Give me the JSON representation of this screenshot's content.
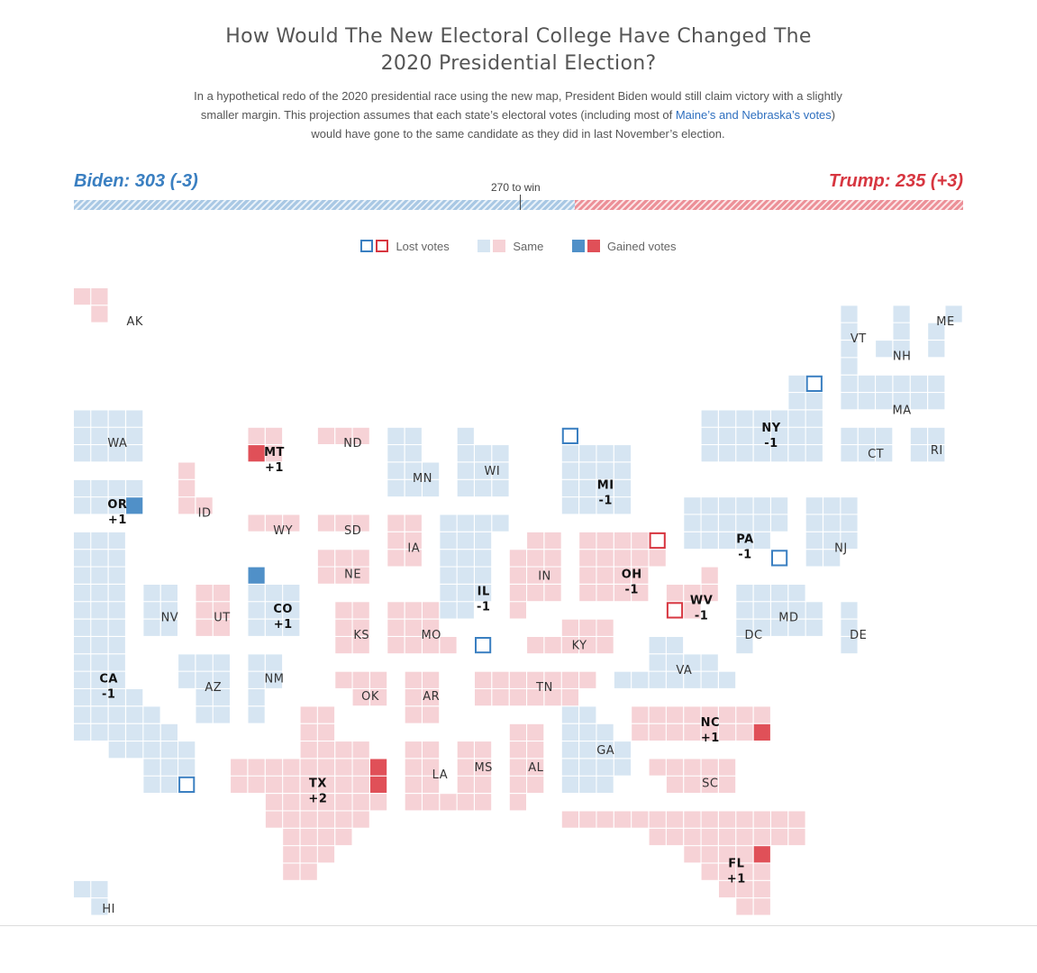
{
  "header": {
    "title_line1": "How Would The New Electoral College Have Changed The",
    "title_line2": "2020 Presidential Election?",
    "desc_before": "In a hypothetical redo of the 2020 presidential race using the new map, President Biden would still claim victory with a slightly smaller margin. This projection assumes that each state’s electoral votes (including most of ",
    "desc_link": "Maine’s and Nebraska’s votes",
    "desc_after": ") would have gone to the same candidate as they did in last November’s election."
  },
  "tally": {
    "biden_label": "Biden: 303 (-3)",
    "trump_label": "Trump: 235 (+3)",
    "biden_votes": 303,
    "trump_votes": 235,
    "threshold_label": "270 to win",
    "threshold": 270,
    "total": 538
  },
  "legend": {
    "lost": "Lost votes",
    "same": "Same",
    "gained": "Gained votes"
  },
  "colors": {
    "dem_same": "#d6e5f2",
    "rep_same": "#f6d2d6",
    "dem_gain": "#5090c8",
    "rep_gain": "#e05058",
    "dem_lost": "#3a7fc1",
    "rep_lost": "#d73640"
  },
  "chart_data": {
    "type": "tile-map",
    "states": [
      {
        "state": "AK",
        "party": "R",
        "votes": 3,
        "change": 0,
        "label": "AK"
      },
      {
        "state": "ME",
        "party": "D",
        "votes": 4,
        "change": 0,
        "label": "ME"
      },
      {
        "state": "VT",
        "party": "D",
        "votes": 3,
        "change": 0,
        "label": "VT"
      },
      {
        "state": "NH",
        "party": "D",
        "votes": 4,
        "change": 0,
        "label": "NH"
      },
      {
        "state": "MA",
        "party": "D",
        "votes": 11,
        "change": 0,
        "label": "MA"
      },
      {
        "state": "NY",
        "party": "D",
        "votes": 28,
        "change": -1,
        "label": "NY",
        "delta": "-1"
      },
      {
        "state": "CT",
        "party": "D",
        "votes": 7,
        "change": 0,
        "label": "CT"
      },
      {
        "state": "RI",
        "party": "D",
        "votes": 4,
        "change": 0,
        "label": "RI"
      },
      {
        "state": "WA",
        "party": "D",
        "votes": 12,
        "change": 0,
        "label": "WA"
      },
      {
        "state": "MT",
        "party": "R",
        "votes": 4,
        "change": 1,
        "label": "MT",
        "delta": "+1"
      },
      {
        "state": "ND",
        "party": "R",
        "votes": 3,
        "change": 0,
        "label": "ND"
      },
      {
        "state": "MN",
        "party": "D",
        "votes": 10,
        "change": 0,
        "label": "MN"
      },
      {
        "state": "WI",
        "party": "D",
        "votes": 10,
        "change": 0,
        "label": "WI"
      },
      {
        "state": "MI",
        "party": "D",
        "votes": 15,
        "change": -1,
        "label": "MI",
        "delta": "-1"
      },
      {
        "state": "OR",
        "party": "D",
        "votes": 8,
        "change": 1,
        "label": "OR",
        "delta": "+1"
      },
      {
        "state": "ID",
        "party": "R",
        "votes": 4,
        "change": 0,
        "label": "ID"
      },
      {
        "state": "WY",
        "party": "R",
        "votes": 3,
        "change": 0,
        "label": "WY"
      },
      {
        "state": "SD",
        "party": "R",
        "votes": 3,
        "change": 0,
        "label": "SD"
      },
      {
        "state": "IA",
        "party": "R",
        "votes": 6,
        "change": 0,
        "label": "IA"
      },
      {
        "state": "PA",
        "party": "D",
        "votes": 19,
        "change": -1,
        "label": "PA",
        "delta": "-1"
      },
      {
        "state": "NJ",
        "party": "D",
        "votes": 14,
        "change": 0,
        "label": "NJ"
      },
      {
        "state": "NE",
        "party": "R",
        "votes": 5,
        "change": 0,
        "label": "NE"
      },
      {
        "state": "IL",
        "party": "D",
        "votes": 19,
        "change": -1,
        "label": "IL",
        "delta": "-1"
      },
      {
        "state": "IN",
        "party": "R",
        "votes": 11,
        "change": 0,
        "label": "IN"
      },
      {
        "state": "OH",
        "party": "R",
        "votes": 17,
        "change": -1,
        "label": "OH",
        "delta": "-1"
      },
      {
        "state": "CA",
        "party": "D",
        "votes": 54,
        "change": -1,
        "label": "CA",
        "delta": "-1"
      },
      {
        "state": "NV",
        "party": "D",
        "votes": 6,
        "change": 0,
        "label": "NV"
      },
      {
        "state": "UT",
        "party": "R",
        "votes": 6,
        "change": 0,
        "label": "UT"
      },
      {
        "state": "CO",
        "party": "D",
        "votes": 10,
        "change": 1,
        "label": "CO",
        "delta": "+1"
      },
      {
        "state": "WV",
        "party": "R",
        "votes": 4,
        "change": -1,
        "label": "WV",
        "delta": "-1"
      },
      {
        "state": "MD",
        "party": "D",
        "votes": 10,
        "change": 0,
        "label": "MD"
      },
      {
        "state": "KS",
        "party": "R",
        "votes": 6,
        "change": 0,
        "label": "KS"
      },
      {
        "state": "MO",
        "party": "R",
        "votes": 10,
        "change": 0,
        "label": "MO"
      },
      {
        "state": "KY",
        "party": "R",
        "votes": 8,
        "change": 0,
        "label": "KY"
      },
      {
        "state": "DC",
        "party": "D",
        "votes": 3,
        "change": 0,
        "label": "DC"
      },
      {
        "state": "DE",
        "party": "D",
        "votes": 3,
        "change": 0,
        "label": "DE"
      },
      {
        "state": "VA",
        "party": "D",
        "votes": 13,
        "change": 0,
        "label": "VA"
      },
      {
        "state": "AZ",
        "party": "D",
        "votes": 11,
        "change": 0,
        "label": "AZ"
      },
      {
        "state": "NM",
        "party": "D",
        "votes": 5,
        "change": 0,
        "label": "NM"
      },
      {
        "state": "OK",
        "party": "R",
        "votes": 7,
        "change": 0,
        "label": "OK"
      },
      {
        "state": "AR",
        "party": "R",
        "votes": 6,
        "change": 0,
        "label": "AR"
      },
      {
        "state": "TN",
        "party": "R",
        "votes": 11,
        "change": 0,
        "label": "TN"
      },
      {
        "state": "NC",
        "party": "R",
        "votes": 16,
        "change": 1,
        "label": "NC",
        "delta": "+1"
      },
      {
        "state": "GA",
        "party": "D",
        "votes": 16,
        "change": 0,
        "label": "GA"
      },
      {
        "state": "TX",
        "party": "R",
        "votes": 40,
        "change": 2,
        "label": "TX",
        "delta": "+2"
      },
      {
        "state": "LA",
        "party": "R",
        "votes": 8,
        "change": 0,
        "label": "LA"
      },
      {
        "state": "MS",
        "party": "R",
        "votes": 6,
        "change": 0,
        "label": "MS"
      },
      {
        "state": "AL",
        "party": "R",
        "votes": 9,
        "change": 0,
        "label": "AL"
      },
      {
        "state": "SC",
        "party": "R",
        "votes": 9,
        "change": 0,
        "label": "SC"
      },
      {
        "state": "FL",
        "party": "R",
        "votes": 30,
        "change": 1,
        "label": "FL",
        "delta": "+1"
      },
      {
        "state": "HI",
        "party": "D",
        "votes": 4,
        "change": 0,
        "label": "HI"
      }
    ]
  }
}
